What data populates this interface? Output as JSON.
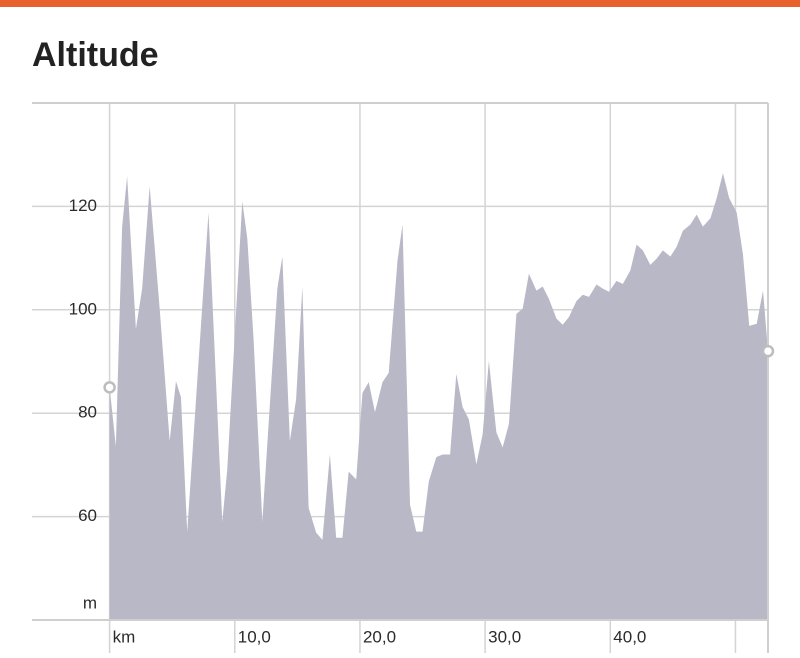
{
  "chart_data": {
    "type": "area",
    "title": "Altitude",
    "y_unit": "m",
    "color": "#b9b8c7",
    "marker_color": "#bdbdbd",
    "x": [
      0,
      0.5,
      1.0,
      1.4,
      2.1,
      2.6,
      3.2,
      4.0,
      4.8,
      5.3,
      5.7,
      6.2,
      7.9,
      9.0,
      9.4,
      10.6,
      11.0,
      11.5,
      12.2,
      13.4,
      13.8,
      14.4,
      14.9,
      15.4,
      15.9,
      16.5,
      17.0,
      17.6,
      18.1,
      18.6,
      19.1,
      19.7,
      20.2,
      20.7,
      21.2,
      21.8,
      22.3,
      23.0,
      23.4,
      24.0,
      24.5,
      25.0,
      25.5,
      26.1,
      26.6,
      27.2,
      27.7,
      28.2,
      28.7,
      29.3,
      29.8,
      30.3,
      30.9,
      31.4,
      31.9,
      32.5,
      33.0,
      33.5,
      34.1,
      34.6,
      35.1,
      35.7,
      36.2,
      36.7,
      37.3,
      37.8,
      38.3,
      38.9,
      39.4,
      39.9,
      40.5,
      41.0,
      41.6,
      42.1,
      42.6,
      43.2,
      43.7,
      44.2,
      44.8,
      45.3,
      45.8,
      46.4,
      46.9,
      47.4,
      48.0,
      48.5,
      49.0,
      49.5,
      50.1,
      50.6,
      51.1,
      51.7,
      52.2,
      52.6
    ],
    "values": [
      85.0,
      73.6,
      116.1,
      125.8,
      96.3,
      104.1,
      123.9,
      100.2,
      74.6,
      86.2,
      83.1,
      57.1,
      118.8,
      59.0,
      69.1,
      121.0,
      113.8,
      94.4,
      59.0,
      104.1,
      110.3,
      74.6,
      82.7,
      104.5,
      61.7,
      56.9,
      55.5,
      72.0,
      55.9,
      55.9,
      68.7,
      67.2,
      83.9,
      86.0,
      80.2,
      86.0,
      87.8,
      109.5,
      116.5,
      62.3,
      57.1,
      57.1,
      66.8,
      71.5,
      72.0,
      72.0,
      87.6,
      81.2,
      78.8,
      70.1,
      75.9,
      90.1,
      76.3,
      73.4,
      77.9,
      99.2,
      100.2,
      107.0,
      103.7,
      104.5,
      102.1,
      98.3,
      97.1,
      98.6,
      101.7,
      102.9,
      102.5,
      104.9,
      104.1,
      103.5,
      105.6,
      105.0,
      107.6,
      112.6,
      111.5,
      108.7,
      109.9,
      111.5,
      110.3,
      112.2,
      115.3,
      116.5,
      118.4,
      116.1,
      117.7,
      121.6,
      126.4,
      121.6,
      118.8,
      110.7,
      96.9,
      97.3,
      103.7,
      92.0
    ],
    "xlim": [
      -6.2,
      52.6
    ],
    "ylim": [
      40,
      140
    ],
    "xticks": [
      {
        "value": 0,
        "label": "km"
      },
      {
        "value": 10,
        "label": "10,0"
      },
      {
        "value": 20,
        "label": "20,0"
      },
      {
        "value": 30,
        "label": "30,0"
      },
      {
        "value": 40,
        "label": "40,0"
      }
    ],
    "xgrid": [
      0,
      10,
      20,
      30,
      40,
      50
    ],
    "yticks": [
      60,
      80,
      100,
      120
    ],
    "grid": true
  }
}
